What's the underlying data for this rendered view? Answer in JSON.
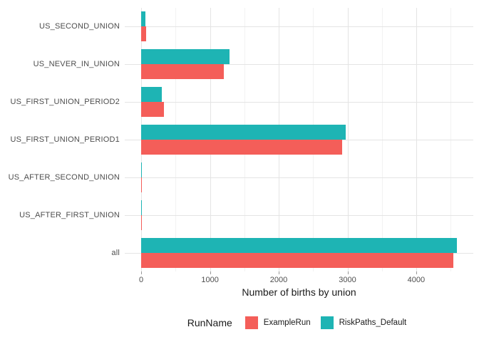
{
  "chart_data": {
    "type": "bar",
    "orientation": "horizontal",
    "title": "",
    "xlabel": "Number of births by union",
    "ylabel": "",
    "categories": [
      "US_SECOND_UNION",
      "US_NEVER_IN_UNION",
      "US_FIRST_UNION_PERIOD2",
      "US_FIRST_UNION_PERIOD1",
      "US_AFTER_SECOND_UNION",
      "US_AFTER_FIRST_UNION",
      "all"
    ],
    "series": [
      {
        "name": "ExampleRun",
        "color": "#F45E59",
        "values": [
          70,
          1200,
          330,
          2925,
          10,
          10,
          4540
        ]
      },
      {
        "name": "RiskPaths_Default",
        "color": "#1EB4B4",
        "values": [
          60,
          1280,
          300,
          2970,
          15,
          15,
          4590
        ]
      }
    ],
    "x_ticks": [
      0,
      1000,
      2000,
      3000,
      4000
    ],
    "x_minor_ticks": [
      500,
      1500,
      2500,
      3500,
      4500
    ],
    "xlim": [
      -240,
      4830
    ],
    "grid": true,
    "legend_title": "RunName",
    "legend_position": "bottom"
  },
  "colors": {
    "background": "#ffffff",
    "major_grid": "#e4e4e4",
    "minor_grid": "#f2f2f2",
    "axis_tick": "#999999",
    "tick_label": "#4d4d4d",
    "axis_title": "#1a1a1a"
  }
}
